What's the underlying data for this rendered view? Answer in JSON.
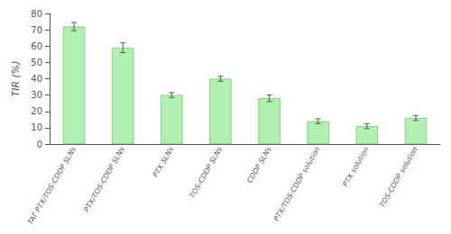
{
  "chart_data": {
    "type": "bar",
    "ylabel": "TIR (%)",
    "categories": [
      "TAT PTX/TOS-CDDP SLNs",
      "PTX/TOS-CDDP SLNs",
      "PTX SLNs",
      "TOS-CDDP SLNs",
      "CDDP SLNs",
      "PTX/TOS-CDDP solution",
      "PTX solution",
      "TOS-CDDP solution"
    ],
    "values": [
      72,
      59,
      30,
      40,
      28,
      14,
      11,
      16
    ],
    "errors": [
      2.5,
      3.0,
      1.5,
      1.5,
      2.0,
      1.5,
      1.5,
      1.5
    ],
    "color": "#b0f0b0",
    "ylim": [
      0,
      80
    ],
    "yticks": [
      0,
      10,
      20,
      30,
      40,
      50,
      60,
      70,
      80
    ],
    "grid": false
  }
}
